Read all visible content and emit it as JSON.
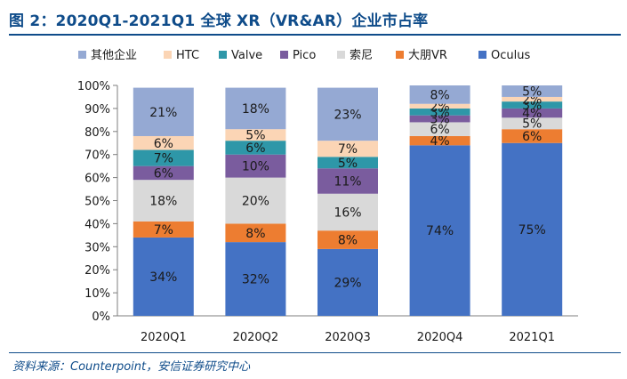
{
  "header": {
    "title": "图 2：2020Q1-2021Q1 全球 XR（VR&AR）企业市占率"
  },
  "footer": {
    "source": "资料来源：Counterpoint，安信证券研究中心"
  },
  "colors": {
    "title": "#0f4c8a",
    "axis": "#7f7f7f",
    "label_dark": "#1a1a1a",
    "label_light": "#ffffff"
  },
  "chart_data": {
    "type": "bar",
    "stacked": true,
    "percent": true,
    "title": "2020Q1-2021Q1 全球 XR（VR&AR）企业市占率",
    "xlabel": "",
    "ylabel": "",
    "ylim": [
      0,
      100
    ],
    "ytick_labels": [
      "0%",
      "10%",
      "20%",
      "30%",
      "40%",
      "50%",
      "60%",
      "70%",
      "80%",
      "90%",
      "100%"
    ],
    "categories": [
      "2020Q1",
      "2020Q2",
      "2020Q3",
      "2020Q4",
      "2021Q1"
    ],
    "legend_position": "top",
    "legend_order": [
      "其他企业",
      "HTC",
      "Valve",
      "Pico",
      "索尼",
      "大朋VR",
      "Oculus"
    ],
    "series": [
      {
        "name": "Oculus",
        "color": "#4472c4",
        "label_color": "#1a1a1a",
        "values": [
          34,
          32,
          29,
          74,
          75
        ],
        "labels": [
          "34%",
          "32%",
          "29%",
          "74%",
          "75%"
        ]
      },
      {
        "name": "大朋VR",
        "color": "#ed7d31",
        "label_color": "#1a1a1a",
        "values": [
          7,
          8,
          8,
          4,
          6
        ],
        "labels": [
          "7%",
          "8%",
          "8%",
          "4%",
          "6%"
        ]
      },
      {
        "name": "索尼",
        "color": "#d9d9d9",
        "label_color": "#1a1a1a",
        "values": [
          18,
          20,
          16,
          6,
          5
        ],
        "labels": [
          "18%",
          "20%",
          "16%",
          "6%",
          "5%"
        ]
      },
      {
        "name": "Pico",
        "color": "#7a5c9e",
        "label_color": "#1a1a1a",
        "values": [
          6,
          10,
          11,
          3,
          4
        ],
        "labels": [
          "6%",
          "10%",
          "11%",
          "3%",
          "4%"
        ]
      },
      {
        "name": "Valve",
        "color": "#2e97a8",
        "label_color": "#1a1a1a",
        "values": [
          7,
          6,
          5,
          3,
          3
        ],
        "labels": [
          "7%",
          "6%",
          "5%",
          "3%",
          "3%"
        ]
      },
      {
        "name": "HTC",
        "color": "#fbd5b5",
        "label_color": "#1a1a1a",
        "values": [
          6,
          5,
          7,
          2,
          2
        ],
        "labels": [
          "6%",
          "5%",
          "7%",
          "2%",
          "2%"
        ]
      },
      {
        "name": "其他企业",
        "color": "#95a9d3",
        "label_color": "#1a1a1a",
        "values": [
          21,
          18,
          23,
          8,
          5
        ],
        "labels": [
          "21%",
          "18%",
          "23%",
          "8%",
          "5%"
        ]
      }
    ]
  }
}
